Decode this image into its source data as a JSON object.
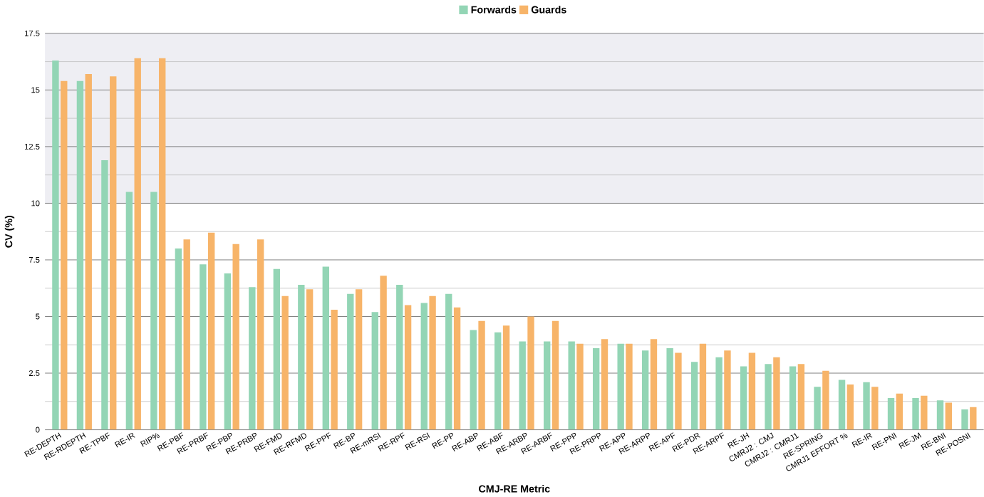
{
  "chart_data": {
    "type": "bar",
    "xlabel": "CMJ-RE Metric",
    "ylabel": "CV (%)",
    "categories": [
      "RE-DEPTH",
      "RE-RDEPTH",
      "RE-TPBF",
      "RE-IR",
      "RIP%",
      "RE-PBF",
      "RE-PRBF",
      "RE-PBP",
      "RE-PRBP",
      "RE-FMD",
      "RE-RFMD",
      "RE-PPF",
      "RE-BP",
      "RE-mRSI",
      "RE-RPF",
      "RE-RSI",
      "RE-PP",
      "RE-ABP",
      "RE-ABF",
      "RE-ARBP",
      "RE-ARBF",
      "RE-PPP",
      "RE-PRPP",
      "RE-APP",
      "RE-ARPP",
      "RE-APF",
      "RE-PDR",
      "RE-ARPF",
      "RE-JH",
      "CMRJ2 : CMJ",
      "CMRJ2 : CMRJ1",
      "RE-SPRING",
      "CMRJ1 EFFORT %",
      "RE-IR",
      "RE-PNI",
      "RE-JM",
      "RE-BNI",
      "RE-POSNI"
    ],
    "series": [
      {
        "name": "Forwards",
        "color": "#93d5b5",
        "values": [
          16.3,
          15.4,
          11.9,
          10.5,
          10.5,
          8.0,
          7.3,
          6.9,
          6.3,
          7.1,
          6.4,
          7.2,
          6.0,
          5.2,
          6.4,
          5.6,
          6.0,
          4.4,
          4.3,
          3.9,
          3.9,
          3.9,
          3.6,
          3.8,
          3.5,
          3.6,
          3.0,
          3.2,
          2.8,
          2.9,
          2.8,
          1.9,
          2.2,
          2.1,
          1.4,
          1.4,
          1.3,
          0.9
        ]
      },
      {
        "name": "Guards",
        "color": "#f7b469",
        "values": [
          15.4,
          15.7,
          15.6,
          16.4,
          16.4,
          8.4,
          8.7,
          8.2,
          8.4,
          5.9,
          6.2,
          5.3,
          6.2,
          6.8,
          5.5,
          5.9,
          5.4,
          4.8,
          4.6,
          5.0,
          4.8,
          3.8,
          4.0,
          3.8,
          4.0,
          3.4,
          3.8,
          3.5,
          3.4,
          3.2,
          2.9,
          2.6,
          2.0,
          1.9,
          1.6,
          1.5,
          1.2,
          1.0
        ]
      }
    ],
    "ylim": [
      0,
      17.5
    ],
    "yticks": [
      0,
      2.5,
      5,
      7.5,
      10,
      12.5,
      15,
      17.5
    ],
    "bands": [
      {
        "axis": "y",
        "from": 10,
        "to": 17.5,
        "color": "#eeeef3"
      }
    ],
    "grid": "y",
    "legend": "top"
  }
}
